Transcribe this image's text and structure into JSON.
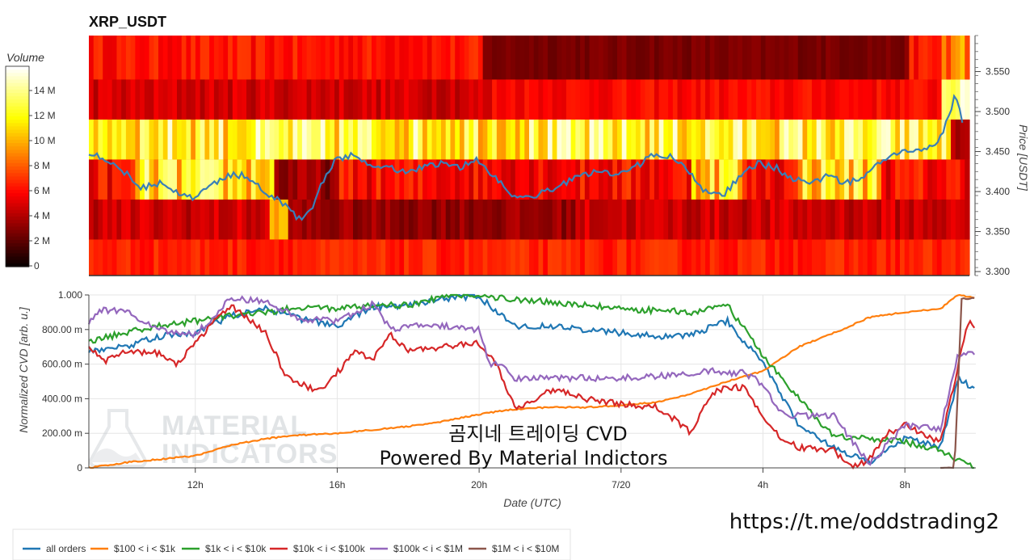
{
  "colors": {
    "all_orders": "#1f77b4",
    "s100_1k": "#ff7f0e",
    "s1k_10k": "#2ca02c",
    "s10k_100k": "#d62728",
    "s100k_1m": "#9467bd",
    "s1m_10m": "#8c564b",
    "price_line": "#3a7fb8",
    "grid": "#e6e6e6"
  },
  "watermark": {
    "line1": "MATERIAL",
    "line2": "INDICATORS",
    "icon": "flask-icon"
  },
  "overlay": {
    "line1": "곰지네 트레이딩 CVD",
    "line2": "Powered By Material Indictors"
  },
  "url_text": "https://t.me/oddstrading2",
  "chart_data": [
    {
      "type": "heatmap",
      "title": "XRP_USDT",
      "ylabel": "Price [USDT]",
      "ylim": [
        3.295,
        3.595
      ],
      "yticks": [
        3.3,
        3.35,
        3.4,
        3.45,
        3.5,
        3.55
      ],
      "ytick_labels": [
        "3.300",
        "3.350",
        "3.400",
        "3.450",
        "3.500",
        "3.550"
      ],
      "colorbar": {
        "title": "Volume",
        "range": [
          0,
          16
        ],
        "ticks": [
          0,
          2,
          4,
          6,
          8,
          10,
          12,
          14
        ],
        "tick_labels": [
          "0",
          "2 M",
          "4 M",
          "6 M",
          "8 M",
          "10 M",
          "12 M",
          "14 M"
        ]
      },
      "bands": [
        {
          "price_low": 3.54,
          "price_high": 3.59,
          "level": "mixed: red, dark from ~20h to ~8h"
        },
        {
          "price_low": 3.49,
          "price_high": 3.54,
          "level": "dark red / red"
        },
        {
          "price_low": 3.44,
          "price_high": 3.49,
          "level": "high (yellow-white)"
        },
        {
          "price_low": 3.39,
          "price_high": 3.44,
          "level": "mixed high / dark"
        },
        {
          "price_low": 3.34,
          "price_high": 3.39,
          "level": "dark red"
        },
        {
          "price_low": 3.29,
          "price_high": 3.34,
          "level": "red"
        }
      ],
      "price_series": {
        "x_hours": [
          9.0,
          9.5,
          10.0,
          10.5,
          11.0,
          11.5,
          12.0,
          12.5,
          13.0,
          13.5,
          14.0,
          14.5,
          15.0,
          15.3,
          15.6,
          16.0,
          16.5,
          17.0,
          17.5,
          18.0,
          18.5,
          19.0,
          19.5,
          20.0,
          20.5,
          21.0,
          21.3,
          21.6,
          22.0,
          22.5,
          23.0,
          23.5,
          24.0,
          24.5,
          25.0,
          25.5,
          26.0,
          26.5,
          27.0,
          27.5,
          28.0,
          28.5,
          29.0,
          29.5,
          30.0,
          30.5,
          31.0,
          31.5,
          32.0,
          32.5,
          33.0,
          33.3,
          33.6,
          33.8
        ],
        "y_price": [
          3.45,
          3.44,
          3.425,
          3.405,
          3.41,
          3.4,
          3.39,
          3.41,
          3.42,
          3.42,
          3.4,
          3.385,
          3.365,
          3.375,
          3.41,
          3.44,
          3.445,
          3.435,
          3.43,
          3.425,
          3.43,
          3.435,
          3.43,
          3.44,
          3.42,
          3.395,
          3.39,
          3.395,
          3.4,
          3.41,
          3.42,
          3.425,
          3.42,
          3.43,
          3.445,
          3.445,
          3.425,
          3.4,
          3.395,
          3.42,
          3.435,
          3.43,
          3.415,
          3.41,
          3.42,
          3.41,
          3.42,
          3.44,
          3.45,
          3.45,
          3.455,
          3.48,
          3.52,
          3.49
        ]
      }
    },
    {
      "type": "line",
      "xlabel": "Date (UTC)",
      "ylabel": "Normalized CVD [arb. u.]",
      "ylim": [
        0,
        1
      ],
      "yticks": [
        0,
        0.2,
        0.4,
        0.6,
        0.8,
        1.0
      ],
      "ytick_labels": [
        "0",
        "200.00 m",
        "400.00 m",
        "600.00 m",
        "800.00 m",
        "1.000"
      ],
      "xlim_hours": [
        9.0,
        34.0
      ],
      "xticks_hours": [
        12,
        16,
        20,
        24,
        28,
        32
      ],
      "xtick_labels": [
        "12h",
        "16h",
        "20h",
        "7/20",
        "4h",
        "8h"
      ],
      "legend_position": "bottom",
      "series": [
        {
          "name": "all orders",
          "x": [
            9.0,
            10.0,
            11.0,
            12.0,
            13.0,
            14.0,
            15.0,
            16.0,
            17.0,
            18.0,
            19.0,
            20.0,
            21.0,
            22.0,
            23.0,
            24.0,
            25.0,
            26.0,
            27.0,
            28.0,
            29.0,
            30.0,
            31.0,
            32.0,
            33.0,
            33.5,
            34.0
          ],
          "y": [
            0.68,
            0.7,
            0.76,
            0.78,
            0.88,
            0.92,
            0.86,
            0.82,
            0.93,
            0.94,
            0.98,
            0.99,
            0.82,
            0.82,
            0.8,
            0.78,
            0.76,
            0.77,
            0.85,
            0.6,
            0.25,
            0.12,
            0.03,
            0.17,
            0.12,
            0.52,
            0.45
          ]
        },
        {
          "name": "$100 < i < $1k",
          "x": [
            9.0,
            10.0,
            11.0,
            12.0,
            13.0,
            14.0,
            15.0,
            16.0,
            17.0,
            18.0,
            19.0,
            20.0,
            21.0,
            22.0,
            23.0,
            24.0,
            25.0,
            26.0,
            27.0,
            28.0,
            29.0,
            30.0,
            31.0,
            32.0,
            33.0,
            33.5,
            34.0
          ],
          "y": [
            0.0,
            0.03,
            0.05,
            0.07,
            0.13,
            0.17,
            0.19,
            0.2,
            0.22,
            0.24,
            0.27,
            0.31,
            0.34,
            0.35,
            0.35,
            0.36,
            0.38,
            0.43,
            0.5,
            0.56,
            0.7,
            0.78,
            0.87,
            0.9,
            0.92,
            1.0,
            0.98
          ]
        },
        {
          "name": "$1k < i < $10k",
          "x": [
            9.0,
            10.0,
            11.0,
            12.0,
            13.0,
            14.0,
            15.0,
            16.0,
            17.0,
            18.0,
            19.0,
            20.0,
            21.0,
            22.0,
            23.0,
            24.0,
            25.0,
            26.0,
            27.0,
            28.0,
            29.0,
            30.0,
            31.0,
            32.0,
            33.0,
            34.0
          ],
          "y": [
            0.73,
            0.78,
            0.82,
            0.85,
            0.88,
            0.9,
            0.93,
            0.92,
            0.94,
            0.94,
            0.99,
            1.0,
            0.97,
            0.96,
            0.94,
            0.92,
            0.91,
            0.9,
            0.94,
            0.65,
            0.4,
            0.18,
            0.17,
            0.15,
            0.1,
            0.0
          ]
        },
        {
          "name": "$10k < i < $100k",
          "x": [
            9.0,
            9.5,
            10.0,
            11.0,
            11.5,
            12.0,
            13.0,
            13.5,
            14.0,
            14.5,
            15.0,
            15.5,
            16.0,
            16.5,
            17.0,
            17.5,
            18.0,
            19.0,
            20.0,
            20.5,
            21.0,
            21.5,
            22.0,
            22.5,
            23.0,
            24.0,
            25.0,
            25.5,
            26.0,
            26.5,
            27.0,
            27.5,
            28.0,
            28.5,
            29.0,
            30.0,
            30.5,
            31.0,
            31.5,
            32.0,
            32.5,
            33.0,
            33.4,
            33.8,
            34.0
          ],
          "y": [
            0.7,
            0.62,
            0.68,
            0.66,
            0.6,
            0.73,
            0.94,
            0.86,
            0.78,
            0.55,
            0.48,
            0.45,
            0.55,
            0.67,
            0.63,
            0.77,
            0.68,
            0.7,
            0.72,
            0.6,
            0.35,
            0.38,
            0.45,
            0.44,
            0.4,
            0.37,
            0.35,
            0.28,
            0.2,
            0.42,
            0.47,
            0.46,
            0.3,
            0.18,
            0.12,
            0.1,
            0.0,
            0.05,
            0.2,
            0.25,
            0.2,
            0.15,
            0.5,
            0.85,
            0.78
          ]
        },
        {
          "name": "$100k < i < $1M",
          "x": [
            9.0,
            9.3,
            10.0,
            10.5,
            11.0,
            12.0,
            13.0,
            14.0,
            15.0,
            16.0,
            17.0,
            17.5,
            18.0,
            19.0,
            20.0,
            20.3,
            20.6,
            21.0,
            22.0,
            23.0,
            24.0,
            25.0,
            26.0,
            26.5,
            27.0,
            27.5,
            28.0,
            28.5,
            29.0,
            30.0,
            31.0,
            32.0,
            33.0,
            33.5,
            34.0
          ],
          "y": [
            0.84,
            0.91,
            0.91,
            0.85,
            0.8,
            0.77,
            0.98,
            0.96,
            0.86,
            0.85,
            0.95,
            0.8,
            0.82,
            0.82,
            0.8,
            0.6,
            0.6,
            0.52,
            0.52,
            0.52,
            0.52,
            0.53,
            0.55,
            0.56,
            0.55,
            0.55,
            0.48,
            0.32,
            0.3,
            0.3,
            0.02,
            0.25,
            0.22,
            0.66,
            0.66
          ]
        },
        {
          "name": "$1M < i < $10M",
          "x": [
            33.0,
            33.4,
            33.6,
            33.8,
            34.0
          ],
          "y": [
            0.0,
            0.0,
            0.98,
            0.98,
            0.98
          ]
        }
      ]
    }
  ]
}
